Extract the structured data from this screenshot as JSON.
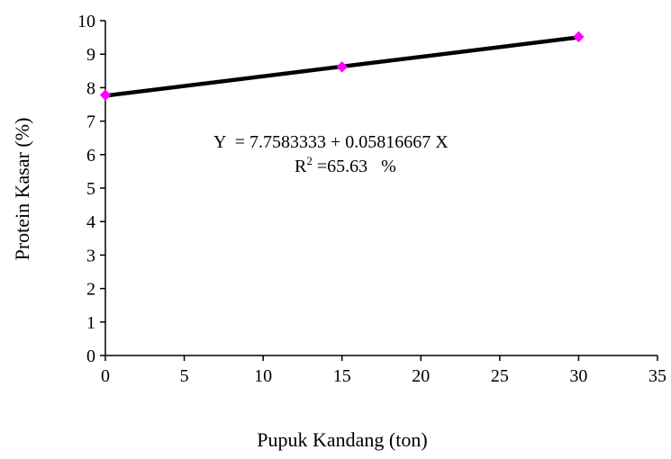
{
  "chart_data": {
    "type": "scatter",
    "title": "",
    "xlabel": "Pupuk Kandang (ton)",
    "ylabel": "Protein Kasar (%)",
    "xlim": [
      0,
      35
    ],
    "ylim": [
      0,
      10
    ],
    "xticks": [
      0,
      5,
      10,
      15,
      20,
      25,
      30,
      35
    ],
    "yticks": [
      0,
      1,
      2,
      3,
      4,
      5,
      6,
      7,
      8,
      9,
      10
    ],
    "grid": false,
    "legend": "none",
    "series": [
      {
        "marker": "diamond",
        "marker_color": "#ff00ff",
        "x": [
          0,
          15,
          30
        ],
        "y": [
          7.78,
          8.62,
          9.52
        ]
      }
    ],
    "trendline": {
      "intercept": 7.7583333,
      "slope": 0.05816667,
      "x_range": [
        0,
        30
      ],
      "color": "#000000"
    },
    "annotation": {
      "equation": "Y  = 7.7583333 + 0.05816667 X",
      "r2_prefix": "R",
      "r2_superscript": "2",
      "r2_value": " =65.63   %"
    }
  }
}
